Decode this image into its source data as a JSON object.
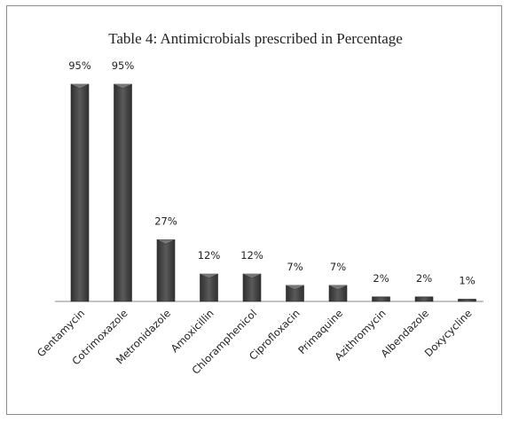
{
  "chart_data": {
    "type": "bar",
    "title": "Table 4: Antimicrobials prescribed in Percentage",
    "categories": [
      "Gentamycin",
      "Cotrimoxazole",
      "Metronidazole",
      "Amoxicillin",
      "Chloramphenicol",
      "Ciprofloxacin",
      "Primaquine",
      "Azithromycin",
      "Albendazole",
      "Doxycycline"
    ],
    "values": [
      95,
      95,
      27,
      12,
      12,
      7,
      7,
      2,
      2,
      1
    ],
    "data_labels": [
      "95%",
      "95%",
      "27%",
      "12%",
      "12%",
      "7%",
      "7%",
      "2%",
      "2%",
      "1%"
    ],
    "unit": "%",
    "ylim": [
      0,
      100
    ],
    "grid": false,
    "legend": "none",
    "bar_color": "#4a4a4a"
  }
}
